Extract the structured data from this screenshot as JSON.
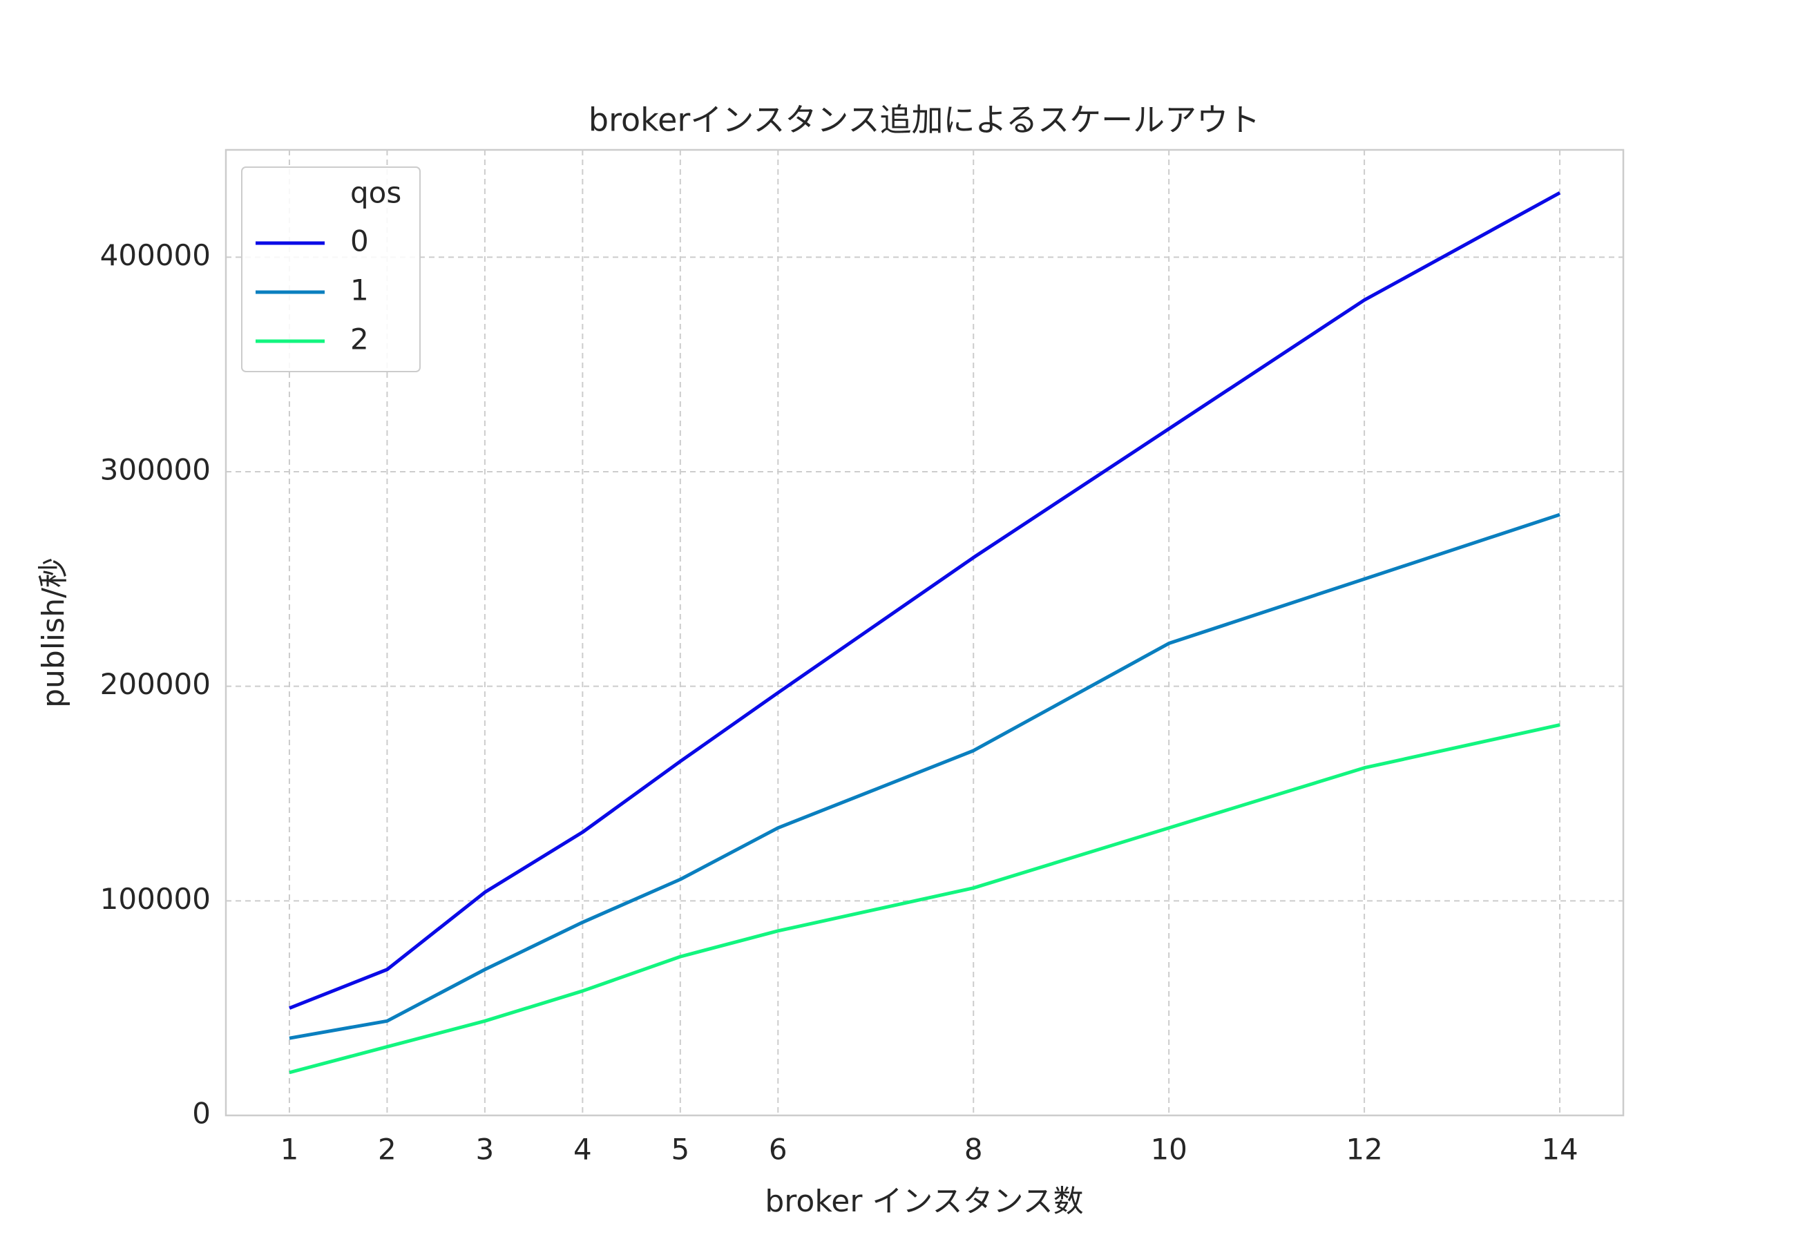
{
  "chart_data": {
    "type": "line",
    "title": "brokerインスタンス追加によるスケールアウト",
    "x_label": "broker インスタンス数",
    "y_label": "publish/秒",
    "x": [
      1,
      2,
      3,
      4,
      5,
      6,
      8,
      10,
      12,
      14
    ],
    "series": [
      {
        "name": "0",
        "color": "#0a0ae6",
        "values": [
          50000,
          68000,
          104000,
          132000,
          165000,
          197000,
          260000,
          320000,
          380000,
          430000
        ]
      },
      {
        "name": "1",
        "color": "#0a7fbf",
        "values": [
          36000,
          44000,
          68000,
          90000,
          110000,
          134000,
          170000,
          220000,
          250000,
          280000
        ]
      },
      {
        "name": "2",
        "color": "#12f57f",
        "values": [
          20000,
          32000,
          44000,
          58000,
          74000,
          86000,
          106000,
          134000,
          162000,
          182000
        ]
      }
    ],
    "legend_title": "qos",
    "legend": "upper left",
    "grid": true,
    "xlim": [
      0.35,
      14.65
    ],
    "xticks": [
      1,
      2,
      3,
      4,
      5,
      6,
      8,
      10,
      12,
      14
    ],
    "ylim": [
      0,
      450000
    ],
    "yticks": [
      0,
      100000,
      200000,
      300000,
      400000
    ]
  }
}
